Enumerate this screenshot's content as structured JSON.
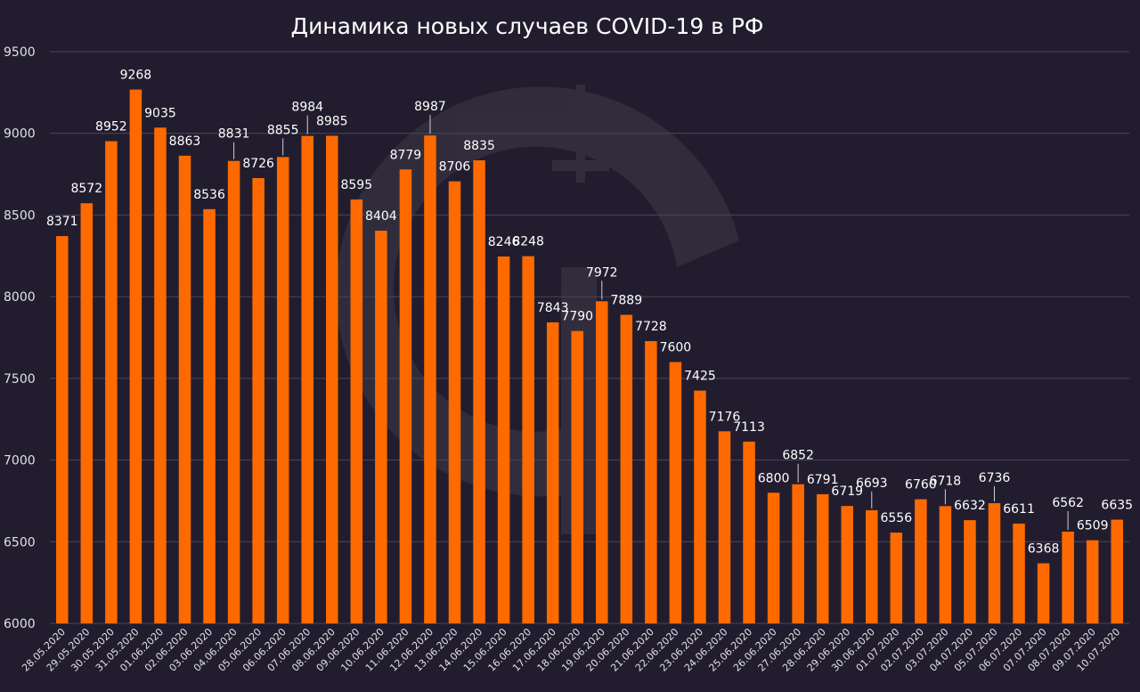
{
  "colors": {
    "background": "#221d2e",
    "bar": "#ff6a00",
    "grid": "#4a4658",
    "text": "#ffffff",
    "axis_text": "#e0e0e6"
  },
  "chart_data": {
    "type": "bar",
    "title": "Динамика новых случаев COVID-19 в РФ",
    "xlabel": "",
    "ylabel": "",
    "ylim": [
      6000,
      9500
    ],
    "yticks": [
      6000,
      6500,
      7000,
      7500,
      8000,
      8500,
      9000,
      9500
    ],
    "grid": true,
    "legend": "none",
    "categories": [
      "28.05.2020",
      "29.05.2020",
      "30.05.2020",
      "31.05.2020",
      "01.06.2020",
      "02.06.2020",
      "03.06.2020",
      "04.06.2020",
      "05.06.2020",
      "06.06.2020",
      "07.06.2020",
      "08.06.2020",
      "09.06.2020",
      "10.06.2020",
      "11.06.2020",
      "12.06.2020",
      "13.06.2020",
      "14.06.2020",
      "15.06.2020",
      "16.06.2020",
      "17.06.2020",
      "18.06.2020",
      "19.06.2020",
      "20.06.2020",
      "21.06.2020",
      "22.06.2020",
      "23.06.2020",
      "24.06.2020",
      "25.06.2020",
      "26.06.2020",
      "27.06.2020",
      "28.06.2020",
      "29.06.2020",
      "30.06.2020",
      "01.07.2020",
      "02.07.2020",
      "03.07.2020",
      "04.07.2020",
      "05.07.2020",
      "06.07.2020",
      "07.07.2020",
      "08.07.2020",
      "09.07.2020",
      "10.07.2020"
    ],
    "values": [
      8371,
      8572,
      8952,
      9268,
      9035,
      8863,
      8536,
      8831,
      8726,
      8855,
      8984,
      8985,
      8595,
      8404,
      8779,
      8987,
      8706,
      8835,
      8246,
      8248,
      7843,
      7790,
      7972,
      7889,
      7728,
      7600,
      7425,
      7176,
      7113,
      6800,
      6852,
      6791,
      6719,
      6693,
      6556,
      6760,
      6718,
      6632,
      6736,
      6611,
      6368,
      6562,
      6509,
      6635
    ]
  }
}
